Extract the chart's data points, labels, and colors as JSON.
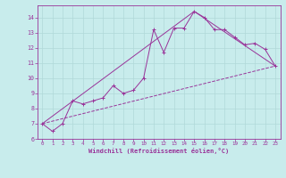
{
  "xlabel": "Windchill (Refroidissement éolien,°C)",
  "background_color": "#c8ecec",
  "grid_color": "#b0d8d8",
  "line_color": "#993399",
  "xlim": [
    -0.5,
    23.5
  ],
  "ylim": [
    6.0,
    14.8
  ],
  "yticks": [
    6,
    7,
    8,
    9,
    10,
    11,
    12,
    13,
    14
  ],
  "xticks": [
    0,
    1,
    2,
    3,
    4,
    5,
    6,
    7,
    8,
    9,
    10,
    11,
    12,
    13,
    14,
    15,
    16,
    17,
    18,
    19,
    20,
    21,
    22,
    23
  ],
  "series1": [
    [
      0,
      7.0
    ],
    [
      1,
      6.5
    ],
    [
      2,
      7.0
    ],
    [
      3,
      8.5
    ],
    [
      4,
      8.3
    ],
    [
      5,
      8.5
    ],
    [
      6,
      8.7
    ],
    [
      7,
      9.5
    ],
    [
      8,
      9.0
    ],
    [
      9,
      9.2
    ],
    [
      10,
      10.0
    ],
    [
      11,
      13.2
    ],
    [
      12,
      11.7
    ],
    [
      13,
      13.3
    ],
    [
      14,
      13.3
    ],
    [
      15,
      14.4
    ],
    [
      16,
      14.0
    ],
    [
      17,
      13.2
    ],
    [
      18,
      13.2
    ],
    [
      19,
      12.7
    ],
    [
      20,
      12.2
    ],
    [
      21,
      12.3
    ],
    [
      22,
      11.9
    ],
    [
      23,
      10.8
    ]
  ],
  "series2_dashed": [
    [
      0,
      7.0
    ],
    [
      23,
      10.8
    ]
  ],
  "series3_straight1": [
    [
      0,
      7.0
    ],
    [
      15,
      14.4
    ]
  ],
  "series3_straight2": [
    [
      15,
      14.4
    ],
    [
      23,
      10.8
    ]
  ]
}
